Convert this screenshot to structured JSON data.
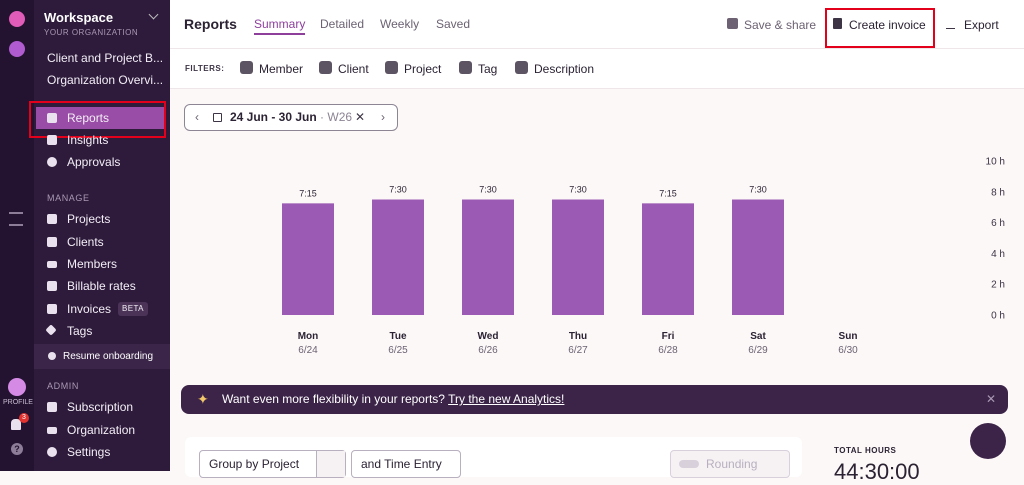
{
  "sidebar": {
    "workspace": "Workspace",
    "org": "YOUR ORGANIZATION",
    "pinned": [
      "Client and Project B...",
      "Organization Overvi..."
    ],
    "top_items": [
      "Reports",
      "Insights",
      "Approvals"
    ],
    "manage_title": "MANAGE",
    "manage_items": [
      "Projects",
      "Clients",
      "Members",
      "Billable rates",
      "Invoices",
      "Tags"
    ],
    "beta": "BETA",
    "onboarding": "Resume onboarding",
    "admin_title": "ADMIN",
    "admin_items": [
      "Subscription",
      "Organization",
      "Settings"
    ],
    "profile": "PROFILE",
    "notifications": "3"
  },
  "header": {
    "title": "Reports",
    "tabs": [
      "Summary",
      "Detailed",
      "Weekly",
      "Saved"
    ],
    "actions": [
      "Save & share",
      "Create invoice",
      "Export"
    ]
  },
  "filters": {
    "label": "FILTERS:",
    "items": [
      "Member",
      "Client",
      "Project",
      "Tag",
      "Description"
    ]
  },
  "date_range": {
    "range": "24 Jun - 30 Jun",
    "week": "W26"
  },
  "chart_data": {
    "type": "bar",
    "categories": [
      "Mon",
      "Tue",
      "Wed",
      "Thu",
      "Fri",
      "Sat",
      "Sun"
    ],
    "dates": [
      "6/24",
      "6/25",
      "6/26",
      "6/27",
      "6/28",
      "6/29",
      "6/30"
    ],
    "values": [
      7.25,
      7.5,
      7.5,
      7.5,
      7.25,
      7.5,
      0
    ],
    "value_labels": [
      "7:15",
      "7:30",
      "7:30",
      "7:30",
      "7:15",
      "7:30",
      null
    ],
    "color": "#9b5bb4",
    "ylim": [
      0,
      10
    ],
    "yticks": [
      {
        "value": 0,
        "label": "0 h"
      },
      {
        "value": 2,
        "label": "2 h"
      },
      {
        "value": 4,
        "label": "4 h"
      },
      {
        "value": 6,
        "label": "6 h"
      },
      {
        "value": 8,
        "label": "8 h"
      },
      {
        "value": 10,
        "label": "10 h"
      }
    ],
    "grid": false
  },
  "banner": {
    "text": "Want even more flexibility in your reports?",
    "link": "Try the new Analytics!"
  },
  "controls": {
    "group_by": "Group by Project",
    "then_by": "and Time Entry",
    "rounding": "Rounding"
  },
  "totals": {
    "label": "TOTAL HOURS",
    "value": "44:30:00"
  }
}
